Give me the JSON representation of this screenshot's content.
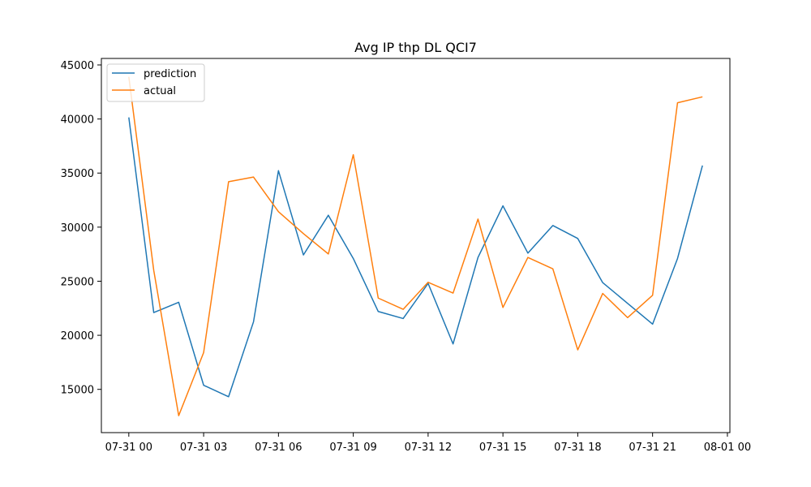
{
  "chart_data": {
    "type": "line",
    "title": "Avg IP thp DL QCI7",
    "xlabel": "",
    "ylabel": "",
    "x": [
      "07-31 00",
      "07-31 01",
      "07-31 02",
      "07-31 03",
      "07-31 04",
      "07-31 05",
      "07-31 06",
      "07-31 07",
      "07-31 08",
      "07-31 09",
      "07-31 10",
      "07-31 11",
      "07-31 12",
      "07-31 13",
      "07-31 14",
      "07-31 15",
      "07-31 16",
      "07-31 17",
      "07-31 18",
      "07-31 19",
      "07-31 20",
      "07-31 21",
      "07-31 22",
      "07-31 23"
    ],
    "xlim": [
      -1.1,
      24.1
    ],
    "xticks": [
      {
        "value": 0,
        "label": "07-31 00"
      },
      {
        "value": 3,
        "label": "07-31 03"
      },
      {
        "value": 6,
        "label": "07-31 06"
      },
      {
        "value": 9,
        "label": "07-31 09"
      },
      {
        "value": 12,
        "label": "07-31 12"
      },
      {
        "value": 15,
        "label": "07-31 15"
      },
      {
        "value": 18,
        "label": "07-31 18"
      },
      {
        "value": 21,
        "label": "07-31 21"
      },
      {
        "value": 24,
        "label": "08-01 00"
      }
    ],
    "ylim": [
      11000,
      45600
    ],
    "yticks": [
      15000,
      20000,
      25000,
      30000,
      35000,
      40000,
      45000
    ],
    "grid": false,
    "legend_position": "upper-left",
    "series": [
      {
        "name": "prediction",
        "color": "#1f77b4",
        "values": [
          40150,
          22100,
          23050,
          15380,
          14320,
          21250,
          35220,
          27430,
          31100,
          27100,
          22200,
          21550,
          24800,
          19200,
          27200,
          31970,
          27600,
          30150,
          28950,
          24870,
          22950,
          21030,
          27100,
          35700
        ]
      },
      {
        "name": "actual",
        "color": "#ff7f0e",
        "values": [
          43900,
          26000,
          12570,
          18400,
          34200,
          34630,
          31430,
          29400,
          27520,
          36700,
          23440,
          22400,
          24900,
          23900,
          30750,
          22570,
          27200,
          26150,
          18650,
          23870,
          21630,
          23700,
          41500,
          42050
        ]
      }
    ]
  }
}
